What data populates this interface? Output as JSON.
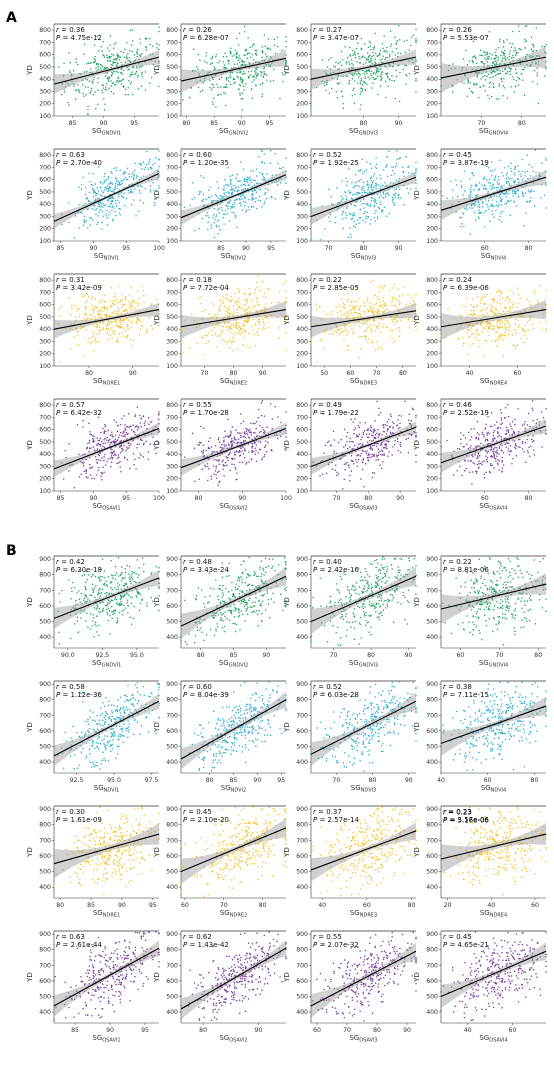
{
  "figure": {
    "panels": [
      {
        "letter": "A",
        "ylim": [
          100,
          850
        ],
        "yticks": [
          100,
          200,
          300,
          400,
          500,
          600,
          700,
          800
        ],
        "rows": [
          {
            "color": "#20a464",
            "label_prefix": "SG",
            "plots": [
              {
                "sub": "GNDVI1",
                "r": "0.36",
                "p": "4.75e-12",
                "xlim": [
                  82,
                  99
                ],
                "xticks": [
                  85,
                  90,
                  95
                ],
                "fit": [
                  360,
                  580
                ],
                "band": 30,
                "spread": 120
              },
              {
                "sub": "GNDVI2",
                "r": "0.26",
                "p": "6.28e-07",
                "xlim": [
                  79,
                  98
                ],
                "xticks": [
                  80,
                  85,
                  90,
                  95
                ],
                "fit": [
                  385,
                  570
                ],
                "band": 35,
                "spread": 120
              },
              {
                "sub": "GNDVI3",
                "r": "0.27",
                "p": "3.47e-07",
                "xlim": [
                  65,
                  95
                ],
                "xticks": [
                  80,
                  90
                ],
                "fit": [
                  400,
                  580
                ],
                "band": 32,
                "spread": 120
              },
              {
                "sub": "GNDVI4",
                "r": "0.26",
                "p": "5.53e-07",
                "xlim": [
                  60,
                  86
                ],
                "xticks": [
                  70,
                  80
                ],
                "fit": [
                  410,
                  580
                ],
                "band": 45,
                "spread": 110
              }
            ]
          },
          {
            "color": "#2aaed0",
            "label_prefix": "SG",
            "plots": [
              {
                "sub": "NDVI1",
                "r": "0.63",
                "p": "2.70e-40",
                "xlim": [
                  84,
                  100
                ],
                "xticks": [
                  85,
                  90,
                  95,
                  100
                ],
                "fit": [
                  260,
                  650
                ],
                "band": 22,
                "spread": 100
              },
              {
                "sub": "NDVI2",
                "r": "0.60",
                "p": "1.20e-35",
                "xlim": [
                  77,
                  98
                ],
                "xticks": [
                  85,
                  90,
                  95
                ],
                "fit": [
                  290,
                  640
                ],
                "band": 22,
                "spread": 100
              },
              {
                "sub": "NDVI3",
                "r": "0.52",
                "p": "1.92e-25",
                "xlim": [
                  65,
                  95
                ],
                "xticks": [
                  70,
                  80,
                  90
                ],
                "fit": [
                  300,
                  620
                ],
                "band": 25,
                "spread": 110
              },
              {
                "sub": "NDVI4",
                "r": "0.45",
                "p": "3.87e-19",
                "xlim": [
                  40,
                  88
                ],
                "xticks": [
                  60,
                  80
                ],
                "fit": [
                  350,
                  620
                ],
                "band": 30,
                "spread": 110
              }
            ]
          },
          {
            "color": "#f5c22b",
            "label_prefix": "SG",
            "plots": [
              {
                "sub": "NDRE1",
                "r": "0.31",
                "p": "3.42e-09",
                "xlim": [
                  72,
                  96
                ],
                "xticks": [
                  80,
                  90
                ],
                "fit": [
                  400,
                  560
                ],
                "band": 28,
                "spread": 110
              },
              {
                "sub": "NDRE2",
                "r": "0.18",
                "p": "7.72e-04",
                "xlim": [
                  62,
                  98
                ],
                "xticks": [
                  70,
                  80,
                  90
                ],
                "fit": [
                  420,
                  560
                ],
                "band": 35,
                "spread": 110
              },
              {
                "sub": "NDRE3",
                "r": "0.22",
                "p": "2.85e-05",
                "xlim": [
                  45,
                  85
                ],
                "xticks": [
                  50,
                  60,
                  70,
                  80
                ],
                "fit": [
                  420,
                  550
                ],
                "band": 32,
                "spread": 110
              },
              {
                "sub": "NDRE4",
                "r": "0.24",
                "p": "6.39e-06",
                "xlim": [
                  28,
                  72
                ],
                "xticks": [
                  40,
                  60
                ],
                "fit": [
                  420,
                  560
                ],
                "band": 40,
                "spread": 110
              }
            ]
          },
          {
            "color": "#7b3fa0",
            "label_prefix": "SG",
            "plots": [
              {
                "sub": "OSAVI1",
                "r": "0.57",
                "p": "6.42e-32",
                "xlim": [
                  84,
                  100
                ],
                "xticks": [
                  85,
                  90,
                  95,
                  100
                ],
                "fit": [
                  280,
                  610
                ],
                "band": 25,
                "spread": 100
              },
              {
                "sub": "OSAVI2",
                "r": "0.55",
                "p": "1.70e-28",
                "xlim": [
                  76,
                  100
                ],
                "xticks": [
                  80,
                  90,
                  100
                ],
                "fit": [
                  290,
                  610
                ],
                "band": 25,
                "spread": 100
              },
              {
                "sub": "OSAVI3",
                "r": "0.49",
                "p": "1.79e-22",
                "xlim": [
                  62,
                  95
                ],
                "xticks": [
                  70,
                  80,
                  90
                ],
                "fit": [
                  300,
                  620
                ],
                "band": 25,
                "spread": 110
              },
              {
                "sub": "OSAVI4",
                "r": "0.46",
                "p": "2.52e-19",
                "xlim": [
                  40,
                  88
                ],
                "xticks": [
                  60,
                  80
                ],
                "fit": [
                  330,
                  630
                ],
                "band": 30,
                "spread": 110
              }
            ]
          }
        ]
      },
      {
        "letter": "B",
        "ylim": [
          330,
          920
        ],
        "yticks": [
          400,
          500,
          600,
          700,
          800,
          900
        ],
        "rows": [
          {
            "color": "#20a464",
            "label_prefix": "SG",
            "plots": [
              {
                "sub": "GNDVI1",
                "r": "0.42",
                "p": "6.30e-18",
                "xlim": [
                  89,
                  96.6
                ],
                "xticks": [
                  90.0,
                  92.5,
                  95.0
                ],
                "fit": [
                  520,
                  780
                ],
                "band": 25,
                "spread": 100
              },
              {
                "sub": "GNDVI2",
                "r": "0.48",
                "p": "3.43e-24",
                "xlim": [
                  77,
                  93
                ],
                "xticks": [
                  80,
                  85,
                  90
                ],
                "fit": [
                  470,
                  790
                ],
                "band": 30,
                "spread": 100
              },
              {
                "sub": "GNDVI3",
                "r": "0.40",
                "p": "2.42e-16",
                "xlim": [
                  64,
                  92
                ],
                "xticks": [
                  70,
                  80,
                  90
                ],
                "fit": [
                  500,
                  790
                ],
                "band": 30,
                "spread": 110
              },
              {
                "sub": "GNDVI4",
                "r": "0.22",
                "p": "8.81e-06",
                "xlim": [
                  55,
                  82
                ],
                "xticks": [
                  60,
                  70,
                  80
                ],
                "fit": [
                  580,
                  740
                ],
                "band": 35,
                "spread": 110
              }
            ]
          },
          {
            "color": "#2aaed0",
            "label_prefix": "SG",
            "plots": [
              {
                "sub": "NDVI1",
                "r": "0.58",
                "p": "1.12e-36",
                "xlim": [
                  91,
                  98
                ],
                "xticks": [
                  92.5,
                  95.0,
                  97.5
                ],
                "fit": [
                  440,
                  790
                ],
                "band": 25,
                "spread": 100
              },
              {
                "sub": "NDVI2",
                "r": "0.60",
                "p": "8.04e-39",
                "xlim": [
                  74,
                  96
                ],
                "xticks": [
                  80,
                  85,
                  90,
                  95
                ],
                "fit": [
                  420,
                  800
                ],
                "band": 25,
                "spread": 100
              },
              {
                "sub": "NDVI3",
                "r": "0.52",
                "p": "6.03e-28",
                "xlim": [
                  63,
                  92
                ],
                "xticks": [
                  70,
                  80,
                  90
                ],
                "fit": [
                  450,
                  790
                ],
                "band": 28,
                "spread": 100
              },
              {
                "sub": "NDVI4",
                "r": "0.38",
                "p": "7.11e-15",
                "xlim": [
                  40,
                  85
                ],
                "xticks": [
                  40,
                  60,
                  80
                ],
                "fit": [
                  520,
                  760
                ],
                "band": 30,
                "spread": 110
              }
            ]
          },
          {
            "color": "#f5c22b",
            "label_prefix": "SG",
            "plots": [
              {
                "sub": "NDRE1",
                "r": "0.30",
                "p": "1.61e-09",
                "xlim": [
                  79,
                  96
                ],
                "xticks": [
                  80,
                  85,
                  90,
                  95
                ],
                "fit": [
                  550,
                  740
                ],
                "band": 35,
                "spread": 110
              },
              {
                "sub": "NDRE2",
                "r": "0.45",
                "p": "2.10e-20",
                "xlim": [
                  59,
                  86
                ],
                "xticks": [
                  60,
                  70,
                  80
                ],
                "fit": [
                  500,
                  780
                ],
                "band": 30,
                "spread": 110
              },
              {
                "sub": "NDRE3",
                "r": "0.37",
                "p": "2.57e-14",
                "xlim": [
                  35,
                  82
                ],
                "xticks": [
                  40,
                  60,
                  80
                ],
                "fit": [
                  510,
                  760
                ],
                "band": 28,
                "spread": 110
              },
              {
                "sub": "NDRE4",
                "r": "0.23",
                "p": "3.57e-06",
                "r2": "0.23",
                "p2": "5.16e-06",
                "xlim": [
                  17,
                  65
                ],
                "xticks": [
                  20,
                  40,
                  60
                ],
                "fit": [
                  580,
                  740
                ],
                "band": 35,
                "spread": 110
              }
            ]
          },
          {
            "color": "#7b3fa0",
            "label_prefix": "SG",
            "plots": [
              {
                "sub": "OSAVI1",
                "r": "0.63",
                "p": "2.61e-44",
                "xlim": [
                  82,
                  97
                ],
                "xticks": [
                  85,
                  90,
                  95
                ],
                "fit": [
                  440,
                  810
                ],
                "band": 25,
                "spread": 100
              },
              {
                "sub": "OSAVI2",
                "r": "0.62",
                "p": "1.43e-42",
                "xlim": [
                  76,
                  95
                ],
                "xticks": [
                  80,
                  90
                ],
                "fit": [
                  420,
                  810
                ],
                "band": 25,
                "spread": 100
              },
              {
                "sub": "OSAVI3",
                "r": "0.55",
                "p": "2.07e-32",
                "xlim": [
                  58,
                  93
                ],
                "xticks": [
                  60,
                  70,
                  80,
                  90
                ],
                "fit": [
                  440,
                  790
                ],
                "band": 28,
                "spread": 100
              },
              {
                "sub": "OSAVI4",
                "r": "0.45",
                "p": "4.65e-21",
                "xlim": [
                  28,
                  75
                ],
                "xticks": [
                  40,
                  60
                ],
                "fit": [
                  500,
                  790
                ],
                "band": 28,
                "spread": 110
              }
            ]
          }
        ]
      }
    ],
    "ylabel": "YD"
  },
  "chart_data": {
    "type": "scatter",
    "description_note": "",
    "panels": [
      "A",
      "B"
    ],
    "ylabel": "YD"
  }
}
